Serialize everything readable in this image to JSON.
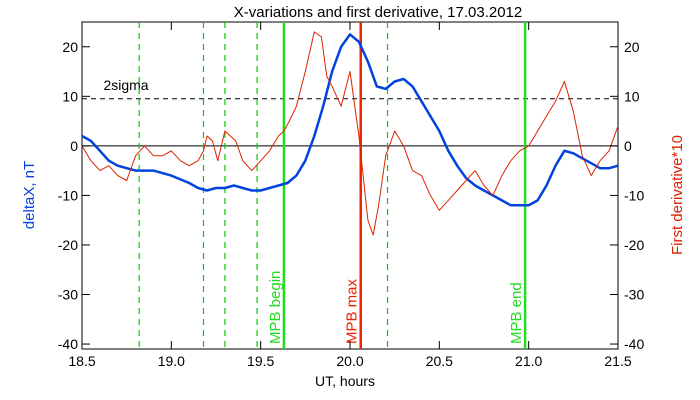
{
  "chart_data": {
    "type": "line",
    "title": "X-variations and first derivative, 17.03.2012",
    "xlabel": "UT, hours",
    "ylabel_left": "deltaX, nT",
    "ylabel_right": "First derivative*10",
    "xlim": [
      18.5,
      21.5
    ],
    "ylim": [
      -41,
      25
    ],
    "x_ticks": [
      18.5,
      19.0,
      19.5,
      20.0,
      20.5,
      21.0,
      21.5
    ],
    "x_tick_labels": [
      "18.5",
      "19.0",
      "19.5",
      "20.0",
      "20.5",
      "21.0",
      "21.5"
    ],
    "y_ticks": [
      -40,
      -30,
      -20,
      -10,
      0,
      10,
      20
    ],
    "y_tick_labels": [
      "-40",
      "-30",
      "-20",
      "-10",
      "0",
      "10",
      "20"
    ],
    "threshold": {
      "label": "2sigma",
      "value": 9.5
    },
    "zero_line": 0,
    "series": [
      {
        "color": "#0044dd",
        "x": [
          18.5,
          18.55,
          18.6,
          18.65,
          18.7,
          18.75,
          18.8,
          18.9,
          19.0,
          19.1,
          19.15,
          19.2,
          19.25,
          19.3,
          19.35,
          19.4,
          19.45,
          19.5,
          19.55,
          19.6,
          19.65,
          19.7,
          19.75,
          19.8,
          19.85,
          19.9,
          19.95,
          20.0,
          20.05,
          20.1,
          20.15,
          20.2,
          20.25,
          20.3,
          20.35,
          20.4,
          20.45,
          20.5,
          20.55,
          20.6,
          20.65,
          20.7,
          20.75,
          20.8,
          20.85,
          20.9,
          20.95,
          21.0,
          21.05,
          21.1,
          21.15,
          21.2,
          21.25,
          21.3,
          21.35,
          21.4,
          21.45,
          21.5
        ],
        "y": [
          2,
          1,
          -1,
          -3,
          -4,
          -4.5,
          -5,
          -5,
          -6,
          -7.5,
          -8.5,
          -9,
          -8.5,
          -8.5,
          -8,
          -8.5,
          -9,
          -9,
          -8.5,
          -8,
          -7.5,
          -6,
          -3,
          2,
          8,
          15,
          20,
          22.5,
          21,
          17,
          12,
          11.5,
          13,
          13.5,
          12,
          9,
          6,
          3,
          -1,
          -4,
          -6.5,
          -8,
          -9,
          -10,
          -11,
          -12,
          -12,
          -12,
          -11,
          -8,
          -4,
          -1,
          -1.5,
          -2.5,
          -3.5,
          -4.5,
          -4.5,
          -4
        ]
      },
      {
        "color": "#dd2200",
        "x": [
          18.5,
          18.55,
          18.6,
          18.65,
          18.7,
          18.75,
          18.8,
          18.85,
          18.9,
          18.95,
          19.0,
          19.05,
          19.1,
          19.15,
          19.18,
          19.2,
          19.23,
          19.26,
          19.3,
          19.33,
          19.36,
          19.4,
          19.45,
          19.5,
          19.55,
          19.6,
          19.63,
          19.66,
          19.7,
          19.75,
          19.8,
          19.84,
          19.87,
          19.9,
          19.95,
          20.0,
          20.05,
          20.1,
          20.13,
          20.16,
          20.2,
          20.25,
          20.3,
          20.35,
          20.4,
          20.45,
          20.5,
          20.55,
          20.6,
          20.65,
          20.7,
          20.75,
          20.8,
          20.85,
          20.9,
          20.95,
          21.0,
          21.05,
          21.1,
          21.15,
          21.2,
          21.25,
          21.3,
          21.35,
          21.4,
          21.45,
          21.5
        ],
        "y": [
          0,
          -3,
          -5,
          -4,
          -6,
          -7,
          -2,
          0,
          -2,
          -2,
          -1,
          -3,
          -4,
          -3,
          -1,
          2,
          1,
          -3,
          3,
          2,
          1,
          -3,
          -5,
          -3,
          -1,
          2,
          3,
          5,
          8,
          15,
          23,
          22,
          14,
          12,
          8,
          15,
          2,
          -15,
          -18,
          -12,
          -2,
          3,
          0,
          -5,
          -6,
          -10,
          -13,
          -11,
          -9,
          -7,
          -5,
          -8,
          -10,
          -6,
          -3,
          -1,
          0,
          3,
          6,
          9,
          13,
          7,
          -2,
          -6,
          -3,
          -1,
          4
        ]
      }
    ],
    "vertical_lines": [
      {
        "x": 18.82,
        "style": "dashed",
        "color": "#00cc00"
      },
      {
        "x": 19.18,
        "style": "dashed",
        "color": "#00cc00"
      },
      {
        "x": 19.3,
        "style": "dashed",
        "color": "#00cc00"
      },
      {
        "x": 19.48,
        "style": "dashed",
        "color": "#00cc00"
      },
      {
        "x": 19.63,
        "style": "solid",
        "color": "#22dd22",
        "label": "MPB begin"
      },
      {
        "x": 20.06,
        "style": "solid",
        "color": "#ee2200",
        "label": "MPB max"
      },
      {
        "x": 20.21,
        "style": "dashed",
        "color": "#00cc00"
      },
      {
        "x": 20.98,
        "style": "solid",
        "color": "#22dd22",
        "label": "MPB end"
      }
    ]
  }
}
